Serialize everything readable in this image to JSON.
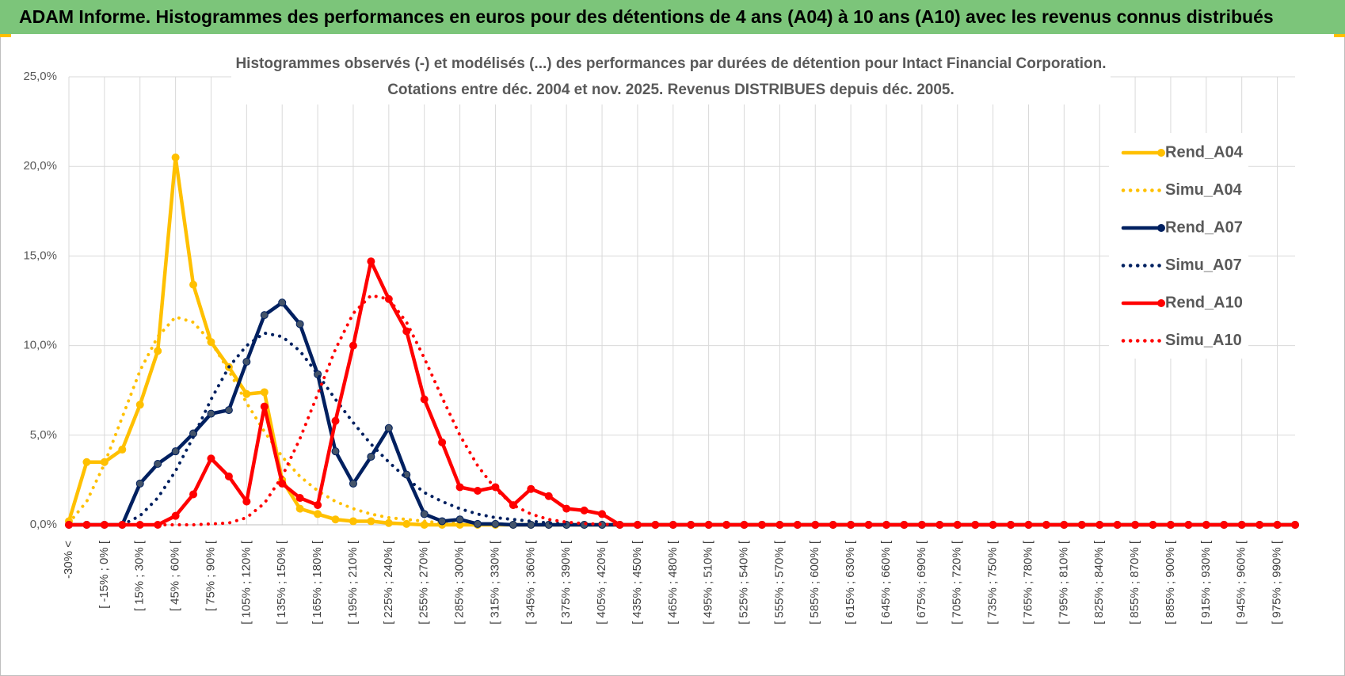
{
  "header": {
    "title": "ADAM Informe. Histogrammes des performances en euros pour des détentions de 4 ans (A04) à 10 ans (A10) avec les revenus connus distribués"
  },
  "chart_data": {
    "type": "line",
    "title": "Histogrammes observés (-) et modélisés (...) des performances par durées de détention pour Intact Financial Corporation.",
    "subtitle": "Cotations entre déc. 2004 et nov. 2025.  Revenus DISTRIBUES depuis déc. 2005.",
    "categories": [
      "-30% <",
      null,
      "[ -15% ; 0% [",
      null,
      "[ 15% ; 30% [",
      null,
      "[ 45% ; 60% [",
      null,
      "[ 75% ; 90% [",
      null,
      "[ 105% ; 120% [",
      null,
      "[ 135% ; 150% [",
      null,
      "[ 165% ; 180% [",
      null,
      "[ 195% ; 210% [",
      null,
      "[ 225% ; 240% [",
      null,
      "[ 255% ; 270% [",
      null,
      "[ 285% ; 300% [",
      null,
      "[ 315% ; 330% [",
      null,
      "[ 345% ; 360% [",
      null,
      "[ 375% ; 390% [",
      null,
      "[ 405% ; 420% [",
      null,
      "[ 435% ; 450% [",
      null,
      "[ 465% ; 480% [",
      null,
      "[ 495% ; 510% [",
      null,
      "[ 525% ; 540% [",
      null,
      "[ 555% ; 570% [",
      null,
      "[ 585% ; 600% [",
      null,
      "[ 615% ; 630% [",
      null,
      "[ 645% ; 660% [",
      null,
      "[ 675% ; 690% [",
      null,
      "[ 705% ; 720% [",
      null,
      "[ 735% ; 750% [",
      null,
      "[ 765% ; 780% [",
      null,
      "[ 795% ; 810% [",
      null,
      "[ 825% ; 840% [",
      null,
      "[ 855% ; 870% [",
      null,
      "[ 885% ; 900% [",
      null,
      "[ 915% ; 930% [",
      null,
      "[ 945% ; 960% [",
      null,
      "[ 975% ; 990% [",
      null
    ],
    "series": [
      {
        "name": "Rend_A04",
        "color": "#ffc000",
        "line_style": "solid",
        "markers": true,
        "values": [
          0.2,
          3.5,
          3.5,
          4.2,
          6.7,
          9.7,
          20.5,
          13.4,
          10.2,
          8.8,
          7.3,
          7.4,
          2.5,
          0.9,
          0.6,
          0.3,
          0.2,
          0.2,
          0.1,
          0.05,
          0,
          0,
          0,
          0,
          0,
          0,
          0,
          0,
          0,
          0,
          0,
          0,
          0,
          0,
          0,
          0,
          0,
          0,
          0,
          0,
          0,
          0,
          0,
          0,
          0,
          0,
          0,
          0,
          0,
          0,
          0,
          0,
          0,
          0,
          0,
          0,
          0,
          0,
          0,
          0,
          0,
          0,
          0,
          0,
          0,
          0,
          0,
          0,
          0,
          0
        ]
      },
      {
        "name": "Simu_A04",
        "color": "#ffc000",
        "line_style": "dotted",
        "markers": false,
        "values": [
          0.1,
          1.3,
          3.4,
          6.0,
          8.6,
          10.5,
          11.6,
          11.3,
          10.2,
          8.6,
          6.8,
          5.2,
          3.8,
          2.7,
          1.9,
          1.3,
          0.9,
          0.6,
          0.4,
          0.3,
          0.2,
          0.1,
          0.1,
          0.05,
          null,
          null,
          null,
          null,
          null,
          null,
          null,
          null,
          null,
          null,
          null,
          null,
          null,
          null,
          null,
          null,
          null,
          null,
          null,
          null,
          null,
          null,
          null,
          null,
          null,
          null,
          null,
          null,
          null,
          null,
          null,
          null,
          null,
          null,
          null,
          null,
          null,
          null,
          null,
          null,
          null,
          null,
          null,
          null,
          null,
          null
        ]
      },
      {
        "name": "Rend_A07",
        "color": "#002060",
        "line_style": "solid",
        "markers": true,
        "values": [
          0,
          0,
          0,
          0,
          2.3,
          3.4,
          4.1,
          5.1,
          6.2,
          6.4,
          9.1,
          11.7,
          12.4,
          11.2,
          8.4,
          4.1,
          2.3,
          3.8,
          5.4,
          2.8,
          0.6,
          0.2,
          0.3,
          0.05,
          0.05,
          0,
          0,
          0,
          0,
          0,
          0,
          0,
          0,
          0,
          0,
          0,
          0,
          0,
          0,
          0,
          0,
          0,
          0,
          0,
          0,
          0,
          0,
          0,
          0,
          0,
          0,
          0,
          0,
          0,
          0,
          0,
          0,
          0,
          0,
          0,
          0,
          0,
          0,
          0,
          0,
          0,
          0,
          0,
          0,
          0
        ]
      },
      {
        "name": "Simu_A07",
        "color": "#002060",
        "line_style": "dotted",
        "markers": false,
        "values": [
          null,
          null,
          null,
          0,
          0.5,
          1.5,
          3.0,
          4.9,
          7.0,
          8.8,
          10.0,
          10.7,
          10.5,
          9.7,
          8.4,
          7.0,
          5.7,
          4.5,
          3.5,
          2.6,
          1.8,
          1.3,
          0.9,
          0.6,
          0.4,
          0.3,
          0.2,
          0.1,
          0.05,
          0.02,
          null,
          null,
          null,
          null,
          null,
          null,
          null,
          null,
          null,
          null,
          null,
          null,
          null,
          null,
          null,
          null,
          null,
          null,
          null,
          null,
          null,
          null,
          null,
          null,
          null,
          null,
          null,
          null,
          null,
          null,
          null,
          null,
          null,
          null,
          null,
          null,
          null,
          null,
          null,
          null
        ]
      },
      {
        "name": "Rend_A10",
        "color": "#ff0000",
        "line_style": "solid",
        "markers": true,
        "values": [
          0,
          0,
          0,
          0,
          0,
          0,
          0.5,
          1.7,
          3.7,
          2.7,
          1.3,
          6.6,
          2.3,
          1.5,
          1.1,
          5.8,
          10.0,
          14.7,
          12.6,
          10.8,
          7.0,
          4.6,
          2.1,
          1.9,
          2.1,
          1.1,
          2.0,
          1.6,
          0.9,
          0.8,
          0.6,
          0,
          0,
          0,
          0,
          0,
          0,
          0,
          0,
          0,
          0,
          0,
          0,
          0,
          0,
          0,
          0,
          0,
          0,
          0,
          0,
          0,
          0,
          0,
          0,
          0,
          0,
          0,
          0,
          0,
          0,
          0,
          0,
          0,
          0,
          0,
          0,
          0,
          0,
          0
        ]
      },
      {
        "name": "Simu_A10",
        "color": "#ff0000",
        "line_style": "dotted",
        "markers": false,
        "values": [
          null,
          null,
          null,
          null,
          null,
          0,
          0,
          0,
          0.05,
          0.1,
          0.4,
          1.2,
          2.7,
          4.8,
          7.3,
          9.8,
          11.8,
          12.8,
          12.6,
          11.3,
          9.3,
          7.1,
          5.0,
          3.3,
          2.0,
          1.1,
          0.6,
          0.3,
          0.15,
          0.07,
          0.03,
          0.01,
          null,
          null,
          null,
          null,
          null,
          null,
          null,
          null,
          null,
          null,
          null,
          null,
          null,
          null,
          null,
          null,
          null,
          null,
          null,
          null,
          null,
          null,
          null,
          null,
          null,
          null,
          null,
          null,
          null,
          null,
          null,
          null,
          null,
          null,
          null,
          null,
          null,
          null
        ]
      }
    ],
    "ylim": [
      0,
      25
    ],
    "yticks": [
      {
        "value": 0,
        "label": "0,0%"
      },
      {
        "value": 5,
        "label": "5,0%"
      },
      {
        "value": 10,
        "label": "10,0%"
      },
      {
        "value": 15,
        "label": "15,0%"
      },
      {
        "value": 20,
        "label": "20,0%"
      },
      {
        "value": 25,
        "label": "25,0%"
      }
    ],
    "grid": true,
    "legend": "right"
  }
}
